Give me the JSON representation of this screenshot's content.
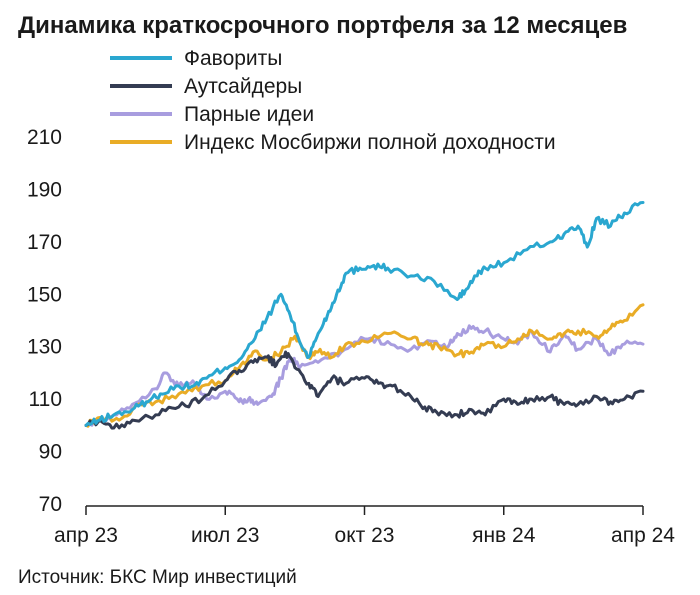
{
  "chart_data": {
    "type": "line",
    "title": "Динамика краткосрочного портфеля за 12 месяцев",
    "xlabel": "",
    "ylabel": "",
    "ylim": [
      70,
      210
    ],
    "yticks": [
      70,
      90,
      110,
      130,
      150,
      170,
      190,
      210
    ],
    "xlim": [
      0,
      12
    ],
    "xticks": [
      {
        "x": 0,
        "label": "апр 23"
      },
      {
        "x": 3,
        "label": "июл 23"
      },
      {
        "x": 6,
        "label": "окт 23"
      },
      {
        "x": 9,
        "label": "янв 24"
      },
      {
        "x": 12,
        "label": "апр 24"
      }
    ],
    "legend_position": "top-left",
    "series": [
      {
        "name": "Фавориты",
        "color": "#2aa7d0",
        "x": [
          0,
          0.3,
          0.6,
          1,
          1.3,
          1.6,
          2,
          2.3,
          2.6,
          3,
          3.3,
          3.6,
          3.9,
          4.2,
          4.4,
          4.6,
          4.8,
          5,
          5.2,
          5.4,
          5.6,
          5.9,
          6.2,
          6.5,
          7,
          7.5,
          8,
          8.2,
          8.4,
          8.6,
          9,
          9.5,
          10,
          10.3,
          10.6,
          10.8,
          11,
          11.3,
          11.6,
          12
        ],
        "y": [
          100,
          102,
          104,
          106,
          109,
          112,
          115,
          115,
          118,
          122,
          125,
          132,
          141,
          150,
          142,
          132,
          126,
          135,
          142,
          150,
          158,
          160,
          161,
          160,
          157,
          155,
          148,
          152,
          157,
          160,
          162,
          167,
          170,
          173,
          176,
          168,
          179,
          176,
          181,
          185
        ]
      },
      {
        "name": "Аутсайдеры",
        "color": "#343c52",
        "x": [
          0,
          0.3,
          0.6,
          1,
          1.5,
          2,
          2.5,
          3,
          3.3,
          3.6,
          3.9,
          4.1,
          4.3,
          4.5,
          4.8,
          5,
          5.3,
          5.6,
          6,
          6.3,
          6.6,
          7,
          7.3,
          7.6,
          8,
          8.3,
          8.6,
          9,
          9.3,
          9.6,
          10,
          10.3,
          10.6,
          11,
          11.3,
          11.6,
          12
        ],
        "y": [
          100,
          102,
          99,
          102,
          104,
          107,
          110,
          117,
          121,
          124,
          126,
          123,
          128,
          122,
          116,
          111,
          118,
          116,
          118,
          116,
          115,
          111,
          107,
          104,
          104,
          106,
          104,
          110,
          108,
          110,
          111,
          108,
          108,
          111,
          109,
          110,
          113
        ]
      },
      {
        "name": "Парные идеи",
        "color": "#a89ddf",
        "x": [
          0,
          0.3,
          0.6,
          1,
          1.5,
          1.7,
          2,
          2.3,
          2.6,
          3,
          3.3,
          3.5,
          3.7,
          4,
          4.2,
          4.4,
          4.6,
          5,
          5.5,
          6,
          6.5,
          7,
          7.5,
          7.8,
          8,
          8.3,
          8.6,
          9,
          9.3,
          9.6,
          10,
          10.3,
          10.6,
          11,
          11.3,
          11.6,
          12
        ],
        "y": [
          100,
          102,
          104,
          108,
          114,
          120,
          115,
          117,
          110,
          113,
          109,
          110,
          108,
          111,
          118,
          126,
          122,
          124,
          128,
          133,
          132,
          129,
          132,
          130,
          135,
          137,
          136,
          133,
          131,
          136,
          128,
          135,
          129,
          133,
          127,
          131,
          131
        ]
      },
      {
        "name": "Индекс Мосбиржи полной доходности",
        "color": "#e9ac26",
        "x": [
          0,
          0.3,
          0.6,
          1,
          1.5,
          2,
          2.5,
          3,
          3.3,
          3.6,
          3.9,
          4.2,
          4.5,
          4.8,
          5,
          5.3,
          5.6,
          6,
          6.5,
          7,
          7.3,
          7.6,
          8,
          8.3,
          8.6,
          9,
          9.3,
          9.6,
          10,
          10.3,
          10.6,
          11,
          11.3,
          11.6,
          12
        ],
        "y": [
          100,
          103,
          102,
          106,
          109,
          112,
          115,
          117,
          122,
          128,
          125,
          128,
          134,
          126,
          128,
          126,
          131,
          132,
          135,
          133,
          131,
          130,
          127,
          128,
          131,
          130,
          133,
          136,
          133,
          135,
          136,
          134,
          137,
          140,
          146
        ]
      }
    ]
  },
  "source": "Источник: БКС Мир инвестиций"
}
